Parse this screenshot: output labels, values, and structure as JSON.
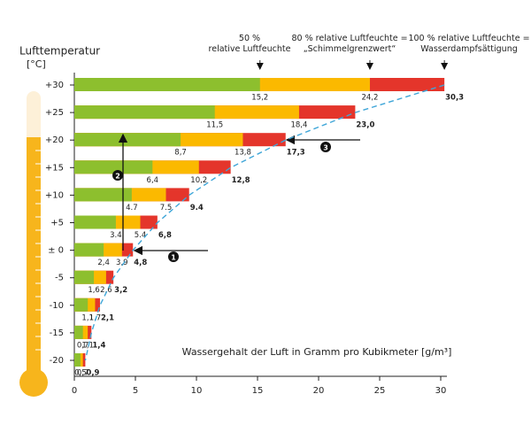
{
  "chart_data": {
    "type": "bar",
    "orientation": "horizontal",
    "y_title": "Lufttemperatur",
    "y_unit": "[°C]",
    "x_title": "Wassergehalt der Luft in Gramm pro Kubikmeter [g/m³]",
    "categories": [
      "+30",
      "+25",
      "+20",
      "+15",
      "+10",
      "+5",
      "± 0",
      "-5",
      "-10",
      "-15",
      "-20"
    ],
    "series": [
      {
        "name": "100 % relative Luftfeuchte =\nWasserdampfsättigung",
        "color": "#e4352b",
        "values": [
          30.3,
          23.0,
          17.3,
          12.8,
          9.4,
          6.8,
          4.8,
          3.2,
          2.1,
          1.4,
          0.9
        ],
        "value_labels": [
          "30,3",
          "23,0",
          "17,3",
          "12,8",
          "9.4",
          "6,8",
          "4,8",
          "3,2",
          "2,1",
          "1,4",
          "0,9"
        ]
      },
      {
        "name": "80 % relative Luftfeuchte =\n„Schimmelgrenzwert“",
        "color": "#fbb900",
        "values": [
          24.2,
          18.4,
          13.8,
          10.2,
          7.5,
          5.4,
          3.9,
          2.6,
          1.7,
          1.1,
          0.7
        ],
        "value_labels": [
          "24,2",
          "18,4",
          "13,8",
          "10,2",
          "7.5",
          "5.4",
          "3,9",
          "2,6",
          "1,7",
          "1,1",
          "0,7"
        ]
      },
      {
        "name": "50 %\nrelative Luftfeuchte",
        "color": "#8dbf2e",
        "values": [
          15.2,
          11.5,
          8.7,
          6.4,
          4.7,
          3.4,
          2.4,
          1.6,
          1.1,
          0.7,
          0.5
        ],
        "value_labels": [
          "15,2",
          "11,5",
          "8,7",
          "6,4",
          "4.7",
          "3.4",
          "2,4",
          "1,6",
          "1,1",
          "0,7",
          "0,5"
        ]
      }
    ],
    "xlim": [
      0,
      30
    ],
    "xticks": [
      0,
      5,
      10,
      15,
      20,
      25,
      30
    ],
    "annotations": [
      "1",
      "2",
      "3"
    ]
  }
}
